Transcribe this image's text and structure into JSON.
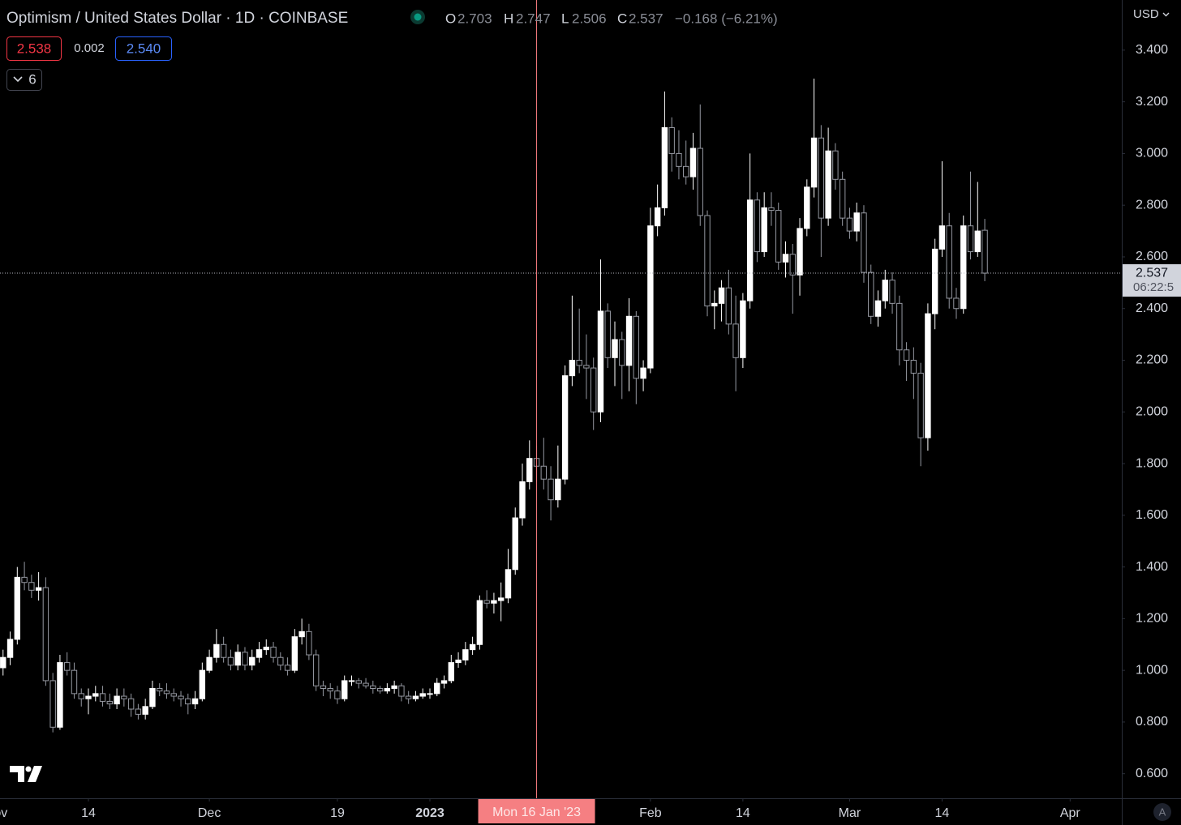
{
  "chart_data": {
    "type": "candlestick",
    "title": "Optimism / United States Dollar · 1D · COINBASE",
    "ohlc_labels": [
      "O",
      "H",
      "L",
      "C"
    ],
    "change": "−0.168 (−6.21%)",
    "sell_price": "2.538",
    "spread": "0.002",
    "buy_price": "2.540",
    "indicator_count": "6",
    "currency": "USD",
    "countdown": "06:22:5",
    "crosshair": {
      "x": "2023-01-16",
      "label": "Mon 16 Jan '23"
    },
    "up_color": "#ffffff",
    "down_color": "#000000",
    "down_border": "#9598a1",
    "x": [
      "2022-11-02",
      "2022-11-03",
      "2022-11-04",
      "2022-11-05",
      "2022-11-06",
      "2022-11-07",
      "2022-11-08",
      "2022-11-09",
      "2022-11-10",
      "2022-11-11",
      "2022-11-12",
      "2022-11-13",
      "2022-11-14",
      "2022-11-15",
      "2022-11-16",
      "2022-11-17",
      "2022-11-18",
      "2022-11-19",
      "2022-11-20",
      "2022-11-21",
      "2022-11-22",
      "2022-11-23",
      "2022-11-24",
      "2022-11-25",
      "2022-11-26",
      "2022-11-27",
      "2022-11-28",
      "2022-11-29",
      "2022-11-30",
      "2022-12-01",
      "2022-12-02",
      "2022-12-03",
      "2022-12-04",
      "2022-12-05",
      "2022-12-06",
      "2022-12-07",
      "2022-12-08",
      "2022-12-09",
      "2022-12-10",
      "2022-12-11",
      "2022-12-12",
      "2022-12-13",
      "2022-12-14",
      "2022-12-15",
      "2022-12-16",
      "2022-12-17",
      "2022-12-18",
      "2022-12-19",
      "2022-12-20",
      "2022-12-21",
      "2022-12-22",
      "2022-12-23",
      "2022-12-24",
      "2022-12-25",
      "2022-12-26",
      "2022-12-27",
      "2022-12-28",
      "2022-12-29",
      "2022-12-30",
      "2022-12-31",
      "2023-01-01",
      "2023-01-02",
      "2023-01-03",
      "2023-01-04",
      "2023-01-05",
      "2023-01-06",
      "2023-01-07",
      "2023-01-08",
      "2023-01-09",
      "2023-01-10",
      "2023-01-11",
      "2023-01-12",
      "2023-01-13",
      "2023-01-14",
      "2023-01-15",
      "2023-01-16",
      "2023-01-17",
      "2023-01-18",
      "2023-01-19",
      "2023-01-20",
      "2023-01-21",
      "2023-01-22",
      "2023-01-23",
      "2023-01-24",
      "2023-01-25",
      "2023-01-26",
      "2023-01-27",
      "2023-01-28",
      "2023-01-29",
      "2023-01-30",
      "2023-01-31",
      "2023-02-01",
      "2023-02-02",
      "2023-02-03",
      "2023-02-04",
      "2023-02-05",
      "2023-02-06",
      "2023-02-07",
      "2023-02-08",
      "2023-02-09",
      "2023-02-10",
      "2023-02-11",
      "2023-02-12",
      "2023-02-13",
      "2023-02-14",
      "2023-02-15",
      "2023-02-16",
      "2023-02-17",
      "2023-02-18",
      "2023-02-19",
      "2023-02-20",
      "2023-02-21",
      "2023-02-22",
      "2023-02-23",
      "2023-02-24",
      "2023-02-25",
      "2023-02-26",
      "2023-02-27",
      "2023-02-28",
      "2023-03-01",
      "2023-03-02",
      "2023-03-03",
      "2023-03-04",
      "2023-03-05",
      "2023-03-06",
      "2023-03-07",
      "2023-03-08",
      "2023-03-09",
      "2023-03-10",
      "2023-03-11",
      "2023-03-12",
      "2023-03-13",
      "2023-03-14",
      "2023-03-15",
      "2023-03-16",
      "2023-03-17",
      "2023-03-18",
      "2023-03-19",
      "2023-03-20"
    ],
    "open": [
      1.01,
      1.05,
      1.12,
      1.36,
      1.34,
      1.31,
      1.32,
      0.96,
      0.78,
      1.03,
      1.0,
      0.91,
      0.89,
      0.9,
      0.91,
      0.88,
      0.87,
      0.9,
      0.89,
      0.85,
      0.83,
      0.86,
      0.93,
      0.92,
      0.91,
      0.9,
      0.89,
      0.87,
      0.89,
      1.0,
      1.05,
      1.1,
      1.05,
      1.02,
      1.07,
      1.02,
      1.05,
      1.08,
      1.09,
      1.05,
      1.02,
      1.0,
      1.13,
      1.15,
      1.06,
      0.94,
      0.93,
      0.92,
      0.89,
      0.96,
      0.96,
      0.95,
      0.94,
      0.93,
      0.92,
      0.93,
      0.94,
      0.9,
      0.89,
      0.9,
      0.91,
      0.91,
      0.95,
      0.96,
      1.03,
      1.04,
      1.08,
      1.1,
      1.27,
      1.26,
      1.27,
      1.28,
      1.39,
      1.59,
      1.73,
      1.82,
      1.79,
      1.74,
      1.66,
      1.74,
      2.14,
      2.2,
      2.18,
      2.17,
      2.0,
      2.39,
      2.21,
      2.28,
      2.18,
      2.37,
      2.13,
      2.17,
      2.72,
      2.79,
      3.1,
      3.0,
      2.95,
      2.91,
      3.02,
      2.76,
      2.41,
      2.42,
      2.48,
      2.34,
      2.21,
      2.43,
      2.82,
      2.62,
      2.79,
      2.78,
      2.58,
      2.61,
      2.53,
      2.71,
      2.87,
      3.06,
      2.75,
      3.01,
      2.9,
      2.75,
      2.7,
      2.77,
      2.54,
      2.37,
      2.43,
      2.51,
      2.42,
      2.24,
      2.2,
      2.15,
      1.9,
      2.38,
      2.63,
      2.72,
      2.44,
      2.4,
      2.72,
      2.62,
      2.703
    ],
    "high": [
      1.08,
      1.15,
      1.4,
      1.42,
      1.37,
      1.38,
      1.36,
      0.99,
      1.06,
      1.07,
      1.03,
      0.93,
      0.93,
      0.94,
      0.94,
      0.91,
      0.93,
      0.93,
      0.91,
      0.87,
      0.89,
      0.96,
      0.95,
      0.95,
      0.93,
      0.92,
      0.91,
      0.92,
      1.03,
      1.08,
      1.16,
      1.13,
      1.08,
      1.1,
      1.09,
      1.08,
      1.11,
      1.12,
      1.11,
      1.07,
      1.05,
      1.16,
      1.2,
      1.18,
      1.08,
      0.96,
      0.95,
      0.94,
      0.98,
      0.98,
      0.97,
      0.97,
      0.96,
      0.94,
      0.95,
      0.96,
      0.95,
      0.92,
      0.92,
      0.93,
      0.93,
      0.97,
      0.98,
      1.06,
      1.07,
      1.11,
      1.13,
      1.29,
      1.31,
      1.3,
      1.34,
      1.47,
      1.63,
      1.8,
      1.89,
      1.87,
      1.9,
      1.79,
      1.87,
      2.18,
      2.45,
      2.4,
      2.3,
      2.21,
      2.59,
      2.42,
      2.35,
      2.31,
      2.44,
      2.39,
      2.2,
      2.79,
      2.88,
      3.24,
      3.14,
      3.09,
      3.05,
      3.08,
      3.19,
      2.78,
      2.47,
      2.51,
      2.55,
      2.45,
      2.46,
      3.0,
      2.85,
      2.85,
      2.85,
      2.81,
      2.66,
      2.65,
      2.75,
      2.9,
      3.29,
      3.11,
      3.1,
      3.04,
      2.93,
      2.79,
      2.81,
      2.8,
      2.57,
      2.47,
      2.55,
      2.54,
      2.45,
      2.27,
      2.25,
      2.19,
      2.42,
      2.67,
      2.97,
      2.77,
      2.48,
      2.76,
      2.93,
      2.89,
      2.747
    ],
    "low": [
      0.98,
      1.02,
      1.1,
      1.31,
      1.28,
      1.27,
      0.94,
      0.76,
      0.77,
      0.98,
      0.89,
      0.86,
      0.83,
      0.88,
      0.86,
      0.85,
      0.85,
      0.86,
      0.82,
      0.81,
      0.81,
      0.85,
      0.9,
      0.89,
      0.88,
      0.86,
      0.83,
      0.85,
      0.88,
      0.99,
      1.03,
      1.03,
      1.0,
      1.0,
      1.0,
      1.0,
      1.03,
      1.06,
      1.03,
      1.0,
      0.98,
      0.99,
      1.1,
      1.04,
      0.92,
      0.9,
      0.89,
      0.87,
      0.88,
      0.94,
      0.93,
      0.93,
      0.91,
      0.91,
      0.91,
      0.91,
      0.88,
      0.87,
      0.88,
      0.89,
      0.89,
      0.9,
      0.93,
      0.95,
      1.01,
      1.02,
      1.06,
      1.08,
      1.24,
      1.22,
      1.19,
      1.26,
      1.37,
      1.56,
      1.7,
      1.73,
      1.7,
      1.58,
      1.63,
      1.72,
      2.1,
      2.15,
      2.05,
      1.93,
      1.96,
      2.17,
      2.1,
      2.05,
      2.08,
      2.03,
      2.08,
      2.15,
      2.68,
      2.76,
      2.93,
      2.9,
      2.88,
      2.86,
      2.72,
      2.37,
      2.32,
      2.35,
      2.3,
      2.08,
      2.17,
      2.4,
      2.58,
      2.6,
      2.72,
      2.55,
      2.52,
      2.38,
      2.45,
      2.68,
      2.83,
      2.6,
      2.72,
      2.86,
      2.72,
      2.67,
      2.66,
      2.5,
      2.34,
      2.33,
      2.4,
      2.38,
      2.18,
      2.12,
      2.05,
      1.79,
      1.85,
      2.32,
      2.6,
      2.4,
      2.36,
      2.38,
      2.59,
      2.6,
      2.506
    ],
    "close": [
      1.05,
      1.12,
      1.36,
      1.34,
      1.31,
      1.32,
      0.96,
      0.78,
      1.03,
      1.0,
      0.91,
      0.89,
      0.9,
      0.91,
      0.88,
      0.87,
      0.9,
      0.89,
      0.85,
      0.83,
      0.86,
      0.93,
      0.92,
      0.91,
      0.9,
      0.89,
      0.87,
      0.89,
      1.0,
      1.05,
      1.1,
      1.05,
      1.02,
      1.07,
      1.02,
      1.05,
      1.08,
      1.09,
      1.05,
      1.02,
      1.0,
      1.13,
      1.15,
      1.06,
      0.94,
      0.93,
      0.92,
      0.89,
      0.96,
      0.96,
      0.95,
      0.94,
      0.93,
      0.92,
      0.93,
      0.94,
      0.9,
      0.89,
      0.9,
      0.91,
      0.91,
      0.95,
      0.96,
      1.03,
      1.04,
      1.08,
      1.1,
      1.27,
      1.26,
      1.27,
      1.28,
      1.39,
      1.59,
      1.73,
      1.82,
      1.79,
      1.74,
      1.66,
      1.74,
      2.14,
      2.2,
      2.18,
      2.17,
      2.0,
      2.39,
      2.21,
      2.28,
      2.18,
      2.37,
      2.13,
      2.17,
      2.72,
      2.79,
      3.1,
      3.0,
      2.95,
      2.91,
      3.02,
      2.76,
      2.41,
      2.42,
      2.48,
      2.34,
      2.21,
      2.43,
      2.82,
      2.62,
      2.79,
      2.78,
      2.58,
      2.61,
      2.53,
      2.71,
      2.87,
      3.06,
      2.75,
      3.01,
      2.9,
      2.75,
      2.7,
      2.77,
      2.54,
      2.37,
      2.43,
      2.51,
      2.42,
      2.24,
      2.2,
      2.15,
      1.9,
      2.38,
      2.63,
      2.72,
      2.44,
      2.4,
      2.72,
      2.62,
      2.7,
      2.537
    ],
    "xlim": [
      "2022-11-01",
      "2023-04-08"
    ],
    "xticks": [
      {
        "value": "2022-11-01",
        "label": "Nov"
      },
      {
        "value": "2022-11-14",
        "label": "14"
      },
      {
        "value": "2022-12-01",
        "label": "Dec"
      },
      {
        "value": "2022-12-19",
        "label": "19"
      },
      {
        "value": "2023-01-01",
        "label": "2023"
      },
      {
        "value": "2023-02-01",
        "label": "Feb"
      },
      {
        "value": "2023-02-14",
        "label": "14"
      },
      {
        "value": "2023-03-01",
        "label": "Mar"
      },
      {
        "value": "2023-03-14",
        "label": "14"
      },
      {
        "value": "2023-04-01",
        "label": "Apr"
      }
    ],
    "ylim": [
      0.505,
      3.594
    ],
    "yticks": [
      {
        "value": 0.6,
        "label": "0.600"
      },
      {
        "value": 0.8,
        "label": "0.800"
      },
      {
        "value": 1.0,
        "label": "1.000"
      },
      {
        "value": 1.2,
        "label": "1.200"
      },
      {
        "value": 1.4,
        "label": "1.400"
      },
      {
        "value": 1.6,
        "label": "1.600"
      },
      {
        "value": 1.8,
        "label": "1.800"
      },
      {
        "value": 2.0,
        "label": "2.000"
      },
      {
        "value": 2.2,
        "label": "2.200"
      },
      {
        "value": 2.4,
        "label": "2.400"
      },
      {
        "value": 2.6,
        "label": "2.600"
      },
      {
        "value": 2.8,
        "label": "2.800"
      },
      {
        "value": 3.0,
        "label": "3.000"
      },
      {
        "value": 3.2,
        "label": "3.200"
      },
      {
        "value": 3.4,
        "label": "3.400"
      }
    ],
    "grid": false
  }
}
